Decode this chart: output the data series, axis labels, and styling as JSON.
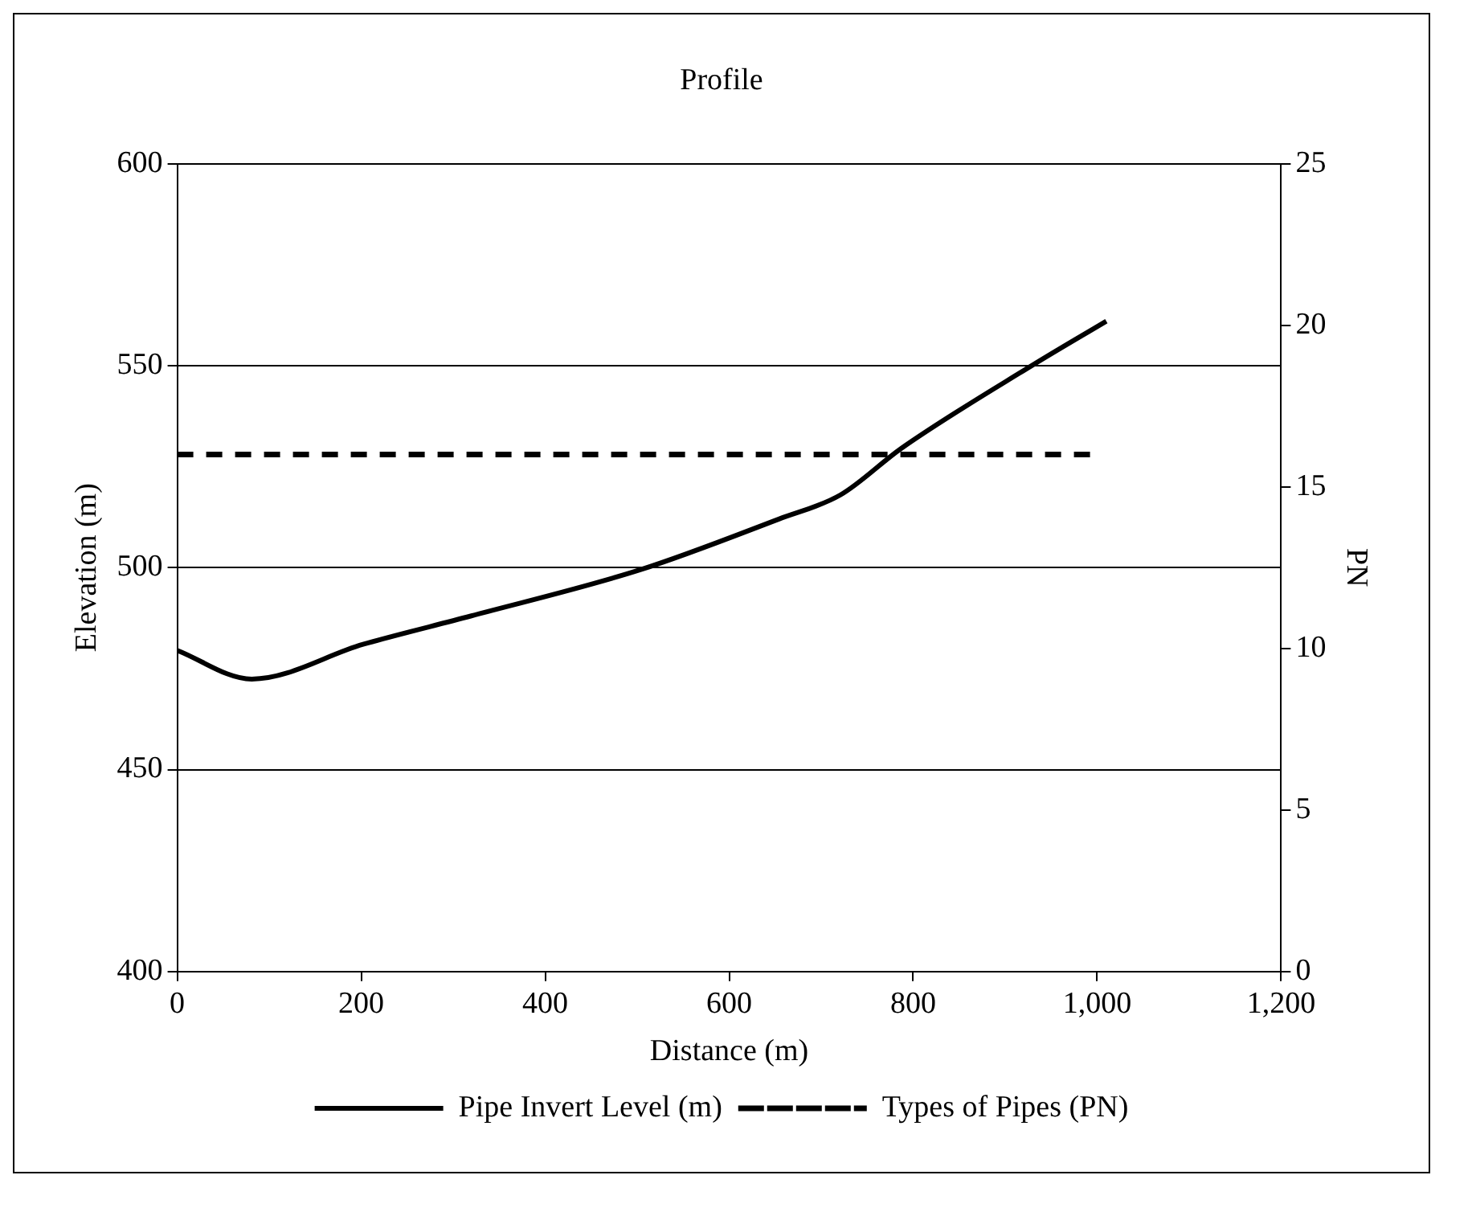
{
  "chart_data": {
    "type": "line",
    "title": "Profile",
    "xlabel": "Distance (m)",
    "ylabel": "Elevation (m)",
    "y2label": "PN",
    "series": [
      {
        "name": "Pipe Invert Level (m)",
        "color": "#000000",
        "x": [
          0,
          81,
          202,
          319,
          504,
          654,
          721,
          787,
          929,
          1010
        ],
        "values": [
          479.5,
          472.4,
          481,
          488,
          499.5,
          512,
          518,
          529.5,
          550,
          561
        ],
        "line_style": "solid"
      },
      {
        "name": "Types of Pipes (PN)",
        "color": "#000000",
        "axis": "y2",
        "x": [
          0,
          1000
        ],
        "values": [
          16,
          16
        ],
        "line_style": "dashed"
      }
    ],
    "xlim": [
      0,
      1200
    ],
    "xticks": [
      0,
      200,
      400,
      600,
      800,
      {
        "value": 1000,
        "label": "1,000"
      },
      {
        "value": 1200,
        "label": "1,200"
      }
    ],
    "ylim": [
      400,
      600
    ],
    "yticks": [
      400,
      450,
      500,
      550,
      600
    ],
    "y2lim": [
      0,
      25
    ],
    "y2ticks": [
      0,
      5,
      10,
      15,
      20,
      25
    ],
    "grid": "y",
    "legend": "bottom",
    "marker": "none"
  }
}
